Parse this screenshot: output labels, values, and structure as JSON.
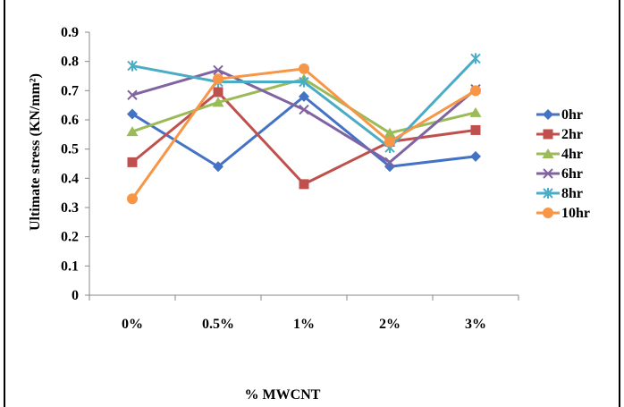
{
  "chart_data": {
    "type": "line",
    "categories": [
      "0%",
      "0.5%",
      "1%",
      "2%",
      "3%"
    ],
    "xlabel": "% MWCNT",
    "ylabel": "Ultimate stress (KN/mm²)",
    "ylim": [
      0,
      0.9
    ],
    "yticks": [
      "0",
      "0.1",
      "0.2",
      "0.3",
      "0.4",
      "0.5",
      "0.6",
      "0.7",
      "0.8",
      "0.9"
    ],
    "grid": false,
    "legend_position": "right",
    "series": [
      {
        "name": "0hr",
        "color": "#4472c4",
        "marker": "diamond",
        "values": [
          0.62,
          0.44,
          0.68,
          0.44,
          0.475
        ]
      },
      {
        "name": "2hr",
        "color": "#c0504d",
        "marker": "square",
        "values": [
          0.455,
          0.695,
          0.38,
          0.525,
          0.565
        ]
      },
      {
        "name": "4hr",
        "color": "#9bbb59",
        "marker": "triangle",
        "values": [
          0.56,
          0.66,
          0.74,
          0.555,
          0.625
        ]
      },
      {
        "name": "6hr",
        "color": "#8064a2",
        "marker": "x",
        "values": [
          0.685,
          0.77,
          0.635,
          0.455,
          0.705
        ]
      },
      {
        "name": "8hr",
        "color": "#4bacc6",
        "marker": "star",
        "values": [
          0.785,
          0.73,
          0.73,
          0.505,
          0.81
        ]
      },
      {
        "name": "10hr",
        "color": "#f79646",
        "marker": "circle",
        "values": [
          0.33,
          0.74,
          0.775,
          0.525,
          0.7
        ]
      }
    ]
  }
}
